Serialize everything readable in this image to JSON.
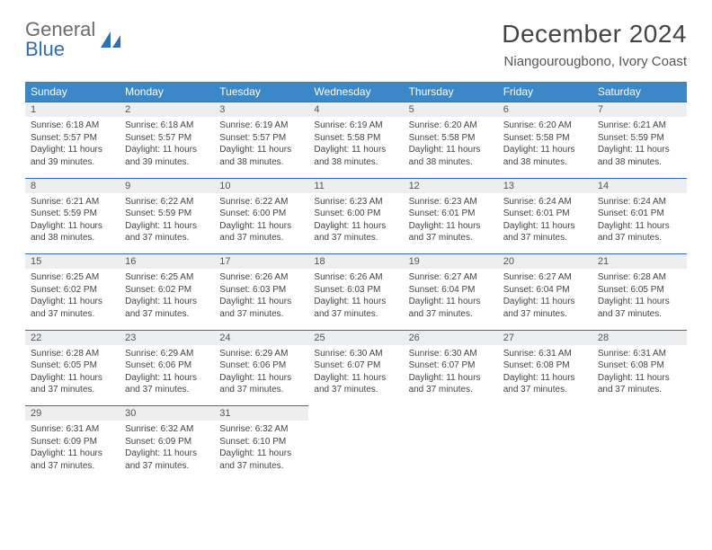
{
  "brand": {
    "part1": "General",
    "part2": "Blue"
  },
  "title": "December 2024",
  "location": "Niangourougbono, Ivory Coast",
  "colors": {
    "header_bg": "#3b87c8",
    "accent_border": "#2f6fb3",
    "daynum_bg": "#eceeef",
    "text": "#444444",
    "logo_gray": "#6b6b6b",
    "logo_blue": "#2f6fb3"
  },
  "daysOfWeek": [
    "Sunday",
    "Monday",
    "Tuesday",
    "Wednesday",
    "Thursday",
    "Friday",
    "Saturday"
  ],
  "weeks": [
    [
      {
        "n": "1",
        "sunrise": "Sunrise: 6:18 AM",
        "sunset": "Sunset: 5:57 PM",
        "day1": "Daylight: 11 hours",
        "day2": "and 39 minutes."
      },
      {
        "n": "2",
        "sunrise": "Sunrise: 6:18 AM",
        "sunset": "Sunset: 5:57 PM",
        "day1": "Daylight: 11 hours",
        "day2": "and 39 minutes."
      },
      {
        "n": "3",
        "sunrise": "Sunrise: 6:19 AM",
        "sunset": "Sunset: 5:57 PM",
        "day1": "Daylight: 11 hours",
        "day2": "and 38 minutes."
      },
      {
        "n": "4",
        "sunrise": "Sunrise: 6:19 AM",
        "sunset": "Sunset: 5:58 PM",
        "day1": "Daylight: 11 hours",
        "day2": "and 38 minutes."
      },
      {
        "n": "5",
        "sunrise": "Sunrise: 6:20 AM",
        "sunset": "Sunset: 5:58 PM",
        "day1": "Daylight: 11 hours",
        "day2": "and 38 minutes."
      },
      {
        "n": "6",
        "sunrise": "Sunrise: 6:20 AM",
        "sunset": "Sunset: 5:58 PM",
        "day1": "Daylight: 11 hours",
        "day2": "and 38 minutes."
      },
      {
        "n": "7",
        "sunrise": "Sunrise: 6:21 AM",
        "sunset": "Sunset: 5:59 PM",
        "day1": "Daylight: 11 hours",
        "day2": "and 38 minutes."
      }
    ],
    [
      {
        "n": "8",
        "sunrise": "Sunrise: 6:21 AM",
        "sunset": "Sunset: 5:59 PM",
        "day1": "Daylight: 11 hours",
        "day2": "and 38 minutes."
      },
      {
        "n": "9",
        "sunrise": "Sunrise: 6:22 AM",
        "sunset": "Sunset: 5:59 PM",
        "day1": "Daylight: 11 hours",
        "day2": "and 37 minutes."
      },
      {
        "n": "10",
        "sunrise": "Sunrise: 6:22 AM",
        "sunset": "Sunset: 6:00 PM",
        "day1": "Daylight: 11 hours",
        "day2": "and 37 minutes."
      },
      {
        "n": "11",
        "sunrise": "Sunrise: 6:23 AM",
        "sunset": "Sunset: 6:00 PM",
        "day1": "Daylight: 11 hours",
        "day2": "and 37 minutes."
      },
      {
        "n": "12",
        "sunrise": "Sunrise: 6:23 AM",
        "sunset": "Sunset: 6:01 PM",
        "day1": "Daylight: 11 hours",
        "day2": "and 37 minutes."
      },
      {
        "n": "13",
        "sunrise": "Sunrise: 6:24 AM",
        "sunset": "Sunset: 6:01 PM",
        "day1": "Daylight: 11 hours",
        "day2": "and 37 minutes."
      },
      {
        "n": "14",
        "sunrise": "Sunrise: 6:24 AM",
        "sunset": "Sunset: 6:01 PM",
        "day1": "Daylight: 11 hours",
        "day2": "and 37 minutes."
      }
    ],
    [
      {
        "n": "15",
        "sunrise": "Sunrise: 6:25 AM",
        "sunset": "Sunset: 6:02 PM",
        "day1": "Daylight: 11 hours",
        "day2": "and 37 minutes."
      },
      {
        "n": "16",
        "sunrise": "Sunrise: 6:25 AM",
        "sunset": "Sunset: 6:02 PM",
        "day1": "Daylight: 11 hours",
        "day2": "and 37 minutes."
      },
      {
        "n": "17",
        "sunrise": "Sunrise: 6:26 AM",
        "sunset": "Sunset: 6:03 PM",
        "day1": "Daylight: 11 hours",
        "day2": "and 37 minutes."
      },
      {
        "n": "18",
        "sunrise": "Sunrise: 6:26 AM",
        "sunset": "Sunset: 6:03 PM",
        "day1": "Daylight: 11 hours",
        "day2": "and 37 minutes."
      },
      {
        "n": "19",
        "sunrise": "Sunrise: 6:27 AM",
        "sunset": "Sunset: 6:04 PM",
        "day1": "Daylight: 11 hours",
        "day2": "and 37 minutes."
      },
      {
        "n": "20",
        "sunrise": "Sunrise: 6:27 AM",
        "sunset": "Sunset: 6:04 PM",
        "day1": "Daylight: 11 hours",
        "day2": "and 37 minutes."
      },
      {
        "n": "21",
        "sunrise": "Sunrise: 6:28 AM",
        "sunset": "Sunset: 6:05 PM",
        "day1": "Daylight: 11 hours",
        "day2": "and 37 minutes."
      }
    ],
    [
      {
        "n": "22",
        "sunrise": "Sunrise: 6:28 AM",
        "sunset": "Sunset: 6:05 PM",
        "day1": "Daylight: 11 hours",
        "day2": "and 37 minutes."
      },
      {
        "n": "23",
        "sunrise": "Sunrise: 6:29 AM",
        "sunset": "Sunset: 6:06 PM",
        "day1": "Daylight: 11 hours",
        "day2": "and 37 minutes."
      },
      {
        "n": "24",
        "sunrise": "Sunrise: 6:29 AM",
        "sunset": "Sunset: 6:06 PM",
        "day1": "Daylight: 11 hours",
        "day2": "and 37 minutes."
      },
      {
        "n": "25",
        "sunrise": "Sunrise: 6:30 AM",
        "sunset": "Sunset: 6:07 PM",
        "day1": "Daylight: 11 hours",
        "day2": "and 37 minutes."
      },
      {
        "n": "26",
        "sunrise": "Sunrise: 6:30 AM",
        "sunset": "Sunset: 6:07 PM",
        "day1": "Daylight: 11 hours",
        "day2": "and 37 minutes."
      },
      {
        "n": "27",
        "sunrise": "Sunrise: 6:31 AM",
        "sunset": "Sunset: 6:08 PM",
        "day1": "Daylight: 11 hours",
        "day2": "and 37 minutes."
      },
      {
        "n": "28",
        "sunrise": "Sunrise: 6:31 AM",
        "sunset": "Sunset: 6:08 PM",
        "day1": "Daylight: 11 hours",
        "day2": "and 37 minutes."
      }
    ],
    [
      {
        "n": "29",
        "sunrise": "Sunrise: 6:31 AM",
        "sunset": "Sunset: 6:09 PM",
        "day1": "Daylight: 11 hours",
        "day2": "and 37 minutes."
      },
      {
        "n": "30",
        "sunrise": "Sunrise: 6:32 AM",
        "sunset": "Sunset: 6:09 PM",
        "day1": "Daylight: 11 hours",
        "day2": "and 37 minutes."
      },
      {
        "n": "31",
        "sunrise": "Sunrise: 6:32 AM",
        "sunset": "Sunset: 6:10 PM",
        "day1": "Daylight: 11 hours",
        "day2": "and 37 minutes."
      },
      null,
      null,
      null,
      null
    ]
  ]
}
